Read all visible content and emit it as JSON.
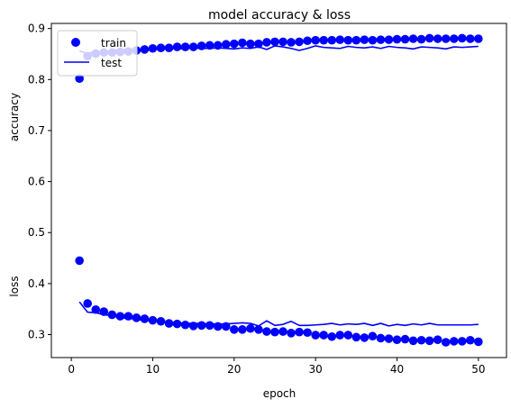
{
  "chart_data": {
    "type": "scatter",
    "title": "model accuracy & loss",
    "xlabel": "epoch",
    "ylabels": [
      "accuracy",
      "loss"
    ],
    "xlim": [
      -2.45,
      53.45
    ],
    "ylim": [
      0.255,
      0.91
    ],
    "x_ticks": [
      0,
      10,
      20,
      30,
      40,
      50
    ],
    "y_ticks": [
      0.3,
      0.4,
      0.5,
      0.6,
      0.7,
      0.8,
      0.9
    ],
    "x_tick_labels": [
      "0",
      "10",
      "20",
      "30",
      "40",
      "50"
    ],
    "y_tick_labels": [
      "0.3",
      "0.4",
      "0.5",
      "0.6",
      "0.7",
      "0.8",
      "0.9"
    ],
    "grid": false,
    "legend_position": "top-left",
    "legend": [
      {
        "label": "train",
        "marker": "dot"
      },
      {
        "label": "test",
        "marker": "line"
      }
    ],
    "x": [
      1,
      2,
      3,
      4,
      5,
      6,
      7,
      8,
      9,
      10,
      11,
      12,
      13,
      14,
      15,
      16,
      17,
      18,
      19,
      20,
      21,
      22,
      23,
      24,
      25,
      26,
      27,
      28,
      29,
      30,
      31,
      32,
      33,
      34,
      35,
      36,
      37,
      38,
      39,
      40,
      41,
      42,
      43,
      44,
      45,
      46,
      47,
      48,
      49,
      50
    ],
    "series": [
      {
        "name": "train",
        "style": "points",
        "color": "#0000ff",
        "values": [
          0.802,
          0.846,
          0.851,
          0.853,
          0.853,
          0.854,
          0.855,
          0.857,
          0.859,
          0.861,
          0.862,
          0.862,
          0.864,
          0.864,
          0.864,
          0.866,
          0.867,
          0.867,
          0.869,
          0.87,
          0.872,
          0.87,
          0.87,
          0.873,
          0.874,
          0.874,
          0.873,
          0.874,
          0.876,
          0.877,
          0.877,
          0.877,
          0.878,
          0.877,
          0.877,
          0.878,
          0.877,
          0.878,
          0.878,
          0.879,
          0.879,
          0.88,
          0.879,
          0.881,
          0.88,
          0.88,
          0.88,
          0.881,
          0.88,
          0.88
        ]
      },
      {
        "name": "test",
        "style": "line",
        "color": "#0000ff",
        "values": [
          0.856,
          0.851,
          0.855,
          0.852,
          0.858,
          0.858,
          0.86,
          0.859,
          0.858,
          0.858,
          0.861,
          0.862,
          0.86,
          0.861,
          0.862,
          0.861,
          0.861,
          0.862,
          0.861,
          0.86,
          0.862,
          0.861,
          0.864,
          0.859,
          0.866,
          0.864,
          0.861,
          0.857,
          0.861,
          0.866,
          0.863,
          0.862,
          0.861,
          0.865,
          0.863,
          0.862,
          0.864,
          0.861,
          0.865,
          0.863,
          0.862,
          0.86,
          0.864,
          0.863,
          0.862,
          0.86,
          0.864,
          0.863,
          0.864,
          0.865
        ]
      },
      {
        "name": "train",
        "style": "points",
        "color": "#0000ff",
        "values": [
          0.445,
          0.361,
          0.349,
          0.345,
          0.339,
          0.336,
          0.336,
          0.333,
          0.331,
          0.328,
          0.326,
          0.322,
          0.321,
          0.319,
          0.317,
          0.318,
          0.318,
          0.316,
          0.316,
          0.31,
          0.31,
          0.312,
          0.31,
          0.306,
          0.305,
          0.306,
          0.303,
          0.305,
          0.304,
          0.299,
          0.299,
          0.296,
          0.299,
          0.299,
          0.295,
          0.294,
          0.297,
          0.293,
          0.292,
          0.29,
          0.291,
          0.288,
          0.289,
          0.288,
          0.29,
          0.285,
          0.287,
          0.287,
          0.289,
          0.286
        ]
      },
      {
        "name": "test",
        "style": "line",
        "color": "#0000ff",
        "values": [
          0.364,
          0.344,
          0.343,
          0.339,
          0.337,
          0.333,
          0.332,
          0.33,
          0.328,
          0.327,
          0.326,
          0.324,
          0.323,
          0.322,
          0.322,
          0.322,
          0.321,
          0.321,
          0.321,
          0.322,
          0.323,
          0.322,
          0.317,
          0.327,
          0.318,
          0.32,
          0.326,
          0.318,
          0.318,
          0.319,
          0.32,
          0.322,
          0.319,
          0.321,
          0.32,
          0.322,
          0.318,
          0.322,
          0.317,
          0.32,
          0.318,
          0.321,
          0.319,
          0.322,
          0.319,
          0.319,
          0.319,
          0.319,
          0.319,
          0.32
        ]
      }
    ]
  }
}
